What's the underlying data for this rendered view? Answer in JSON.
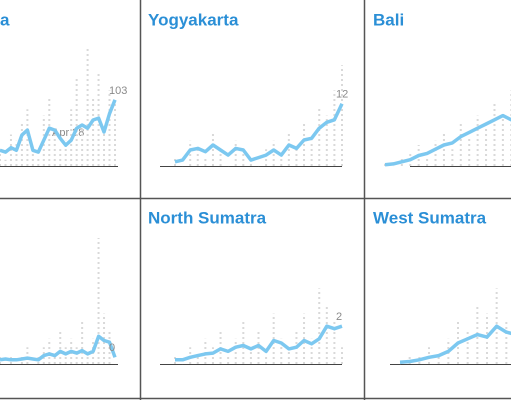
{
  "chart_data": [
    {
      "type": "line",
      "title": "a",
      "ylim": [
        0,
        200
      ],
      "label_last": true,
      "annotation": "Apr 28",
      "series": [
        {
          "color": "#d9d9d9",
          "style": "dotted",
          "values": [
            30,
            10,
            50,
            40,
            70,
            90,
            20,
            15,
            80,
            110,
            60,
            30,
            40,
            90,
            140,
            70,
            190,
            110,
            150,
            60,
            120,
            103
          ]
        },
        {
          "color": "#7cc8f0",
          "style": "solid",
          "values": [
            25,
            22,
            29,
            25,
            49,
            57,
            25,
            22,
            41,
            60,
            57,
            44,
            33,
            41,
            60,
            65,
            60,
            73,
            76,
            54,
            83,
            105
          ]
        }
      ]
    },
    {
      "type": "line",
      "title": "Yogyakarta",
      "ylim": [
        0,
        15
      ],
      "label_last": true,
      "series": [
        {
          "color": "#d9d9d9",
          "style": "dotted",
          "values": [
            1,
            0,
            3,
            2,
            1,
            4,
            2,
            0,
            3,
            2,
            1,
            0,
            2,
            3,
            1,
            4,
            2,
            5,
            3,
            7,
            6,
            9,
            12
          ]
        },
        {
          "color": "#7cc8f0",
          "style": "solid",
          "values": [
            0.5,
            0.7,
            1.9,
            2.1,
            1.7,
            2.5,
            1.9,
            1.3,
            2.1,
            1.9,
            0.7,
            1,
            1.3,
            1.9,
            1.3,
            2.5,
            2.1,
            3.1,
            3.3,
            4.5,
            5.2,
            5.5,
            7.4
          ]
        }
      ]
    },
    {
      "type": "line",
      "title": "Bali",
      "ylim": [
        0,
        30
      ],
      "label_last": false,
      "series": [
        {
          "color": "#d9d9d9",
          "style": "dotted",
          "values": [
            1,
            0,
            2,
            3,
            5,
            2,
            6,
            8,
            4,
            10,
            7,
            12,
            9,
            15,
            13,
            18,
            10,
            16,
            20,
            14
          ]
        },
        {
          "color": "#7cc8f0",
          "style": "solid",
          "values": [
            0.3,
            0.5,
            1,
            1.5,
            2.5,
            3,
            4,
            5,
            5.5,
            7,
            8,
            9,
            10,
            11,
            12,
            11,
            12,
            13,
            14,
            15
          ]
        }
      ]
    },
    {
      "type": "line",
      "ylim": [
        0,
        15
      ],
      "label_last": true,
      "series": [
        {
          "color": "#d9d9d9",
          "style": "dotted",
          "values": [
            1,
            0,
            1,
            0,
            1,
            2,
            0,
            1,
            2,
            3,
            1,
            4,
            2,
            3,
            2,
            5,
            1,
            3,
            15,
            6,
            4,
            0
          ]
        },
        {
          "color": "#7cc8f0",
          "style": "solid",
          "values": [
            0.5,
            0.6,
            0.5,
            0.5,
            0.6,
            0.7,
            0.6,
            0.5,
            1,
            1.2,
            1,
            1.5,
            1.2,
            1.5,
            1.3,
            1.6,
            1.2,
            1.5,
            3.3,
            2.8,
            2.6,
            0.8
          ]
        }
      ]
    },
    {
      "type": "line",
      "title": "North Sumatra",
      "ylim": [
        0,
        15
      ],
      "label_last": true,
      "series": [
        {
          "color": "#d9d9d9",
          "style": "dotted",
          "values": [
            1,
            0,
            2,
            1,
            3,
            2,
            4,
            1,
            3,
            5,
            2,
            4,
            1,
            6,
            3,
            2,
            4,
            6,
            3,
            9,
            7,
            5,
            2
          ]
        },
        {
          "color": "#7cc8f0",
          "style": "solid",
          "values": [
            0.5,
            0.5,
            0.8,
            1,
            1.2,
            1.3,
            1.8,
            1.5,
            2,
            2.2,
            1.8,
            2.2,
            1.5,
            2.8,
            2.5,
            1.8,
            2,
            2.8,
            2.4,
            3,
            4.5,
            4.2,
            4.5
          ]
        }
      ]
    },
    {
      "type": "line",
      "title": "West Sumatra",
      "ylim": [
        0,
        15
      ],
      "label_last": false,
      "series": [
        {
          "color": "#d9d9d9",
          "style": "dotted",
          "values": [
            0,
            1,
            1,
            2,
            1,
            3,
            5,
            4,
            7,
            6,
            9,
            5,
            7,
            8,
            5,
            6
          ]
        },
        {
          "color": "#7cc8f0",
          "style": "solid",
          "values": [
            0.2,
            0.3,
            0.5,
            0.8,
            1,
            1.5,
            2.5,
            3,
            3.5,
            3.2,
            4.5,
            3.8,
            3.5,
            4,
            3.2,
            3.8
          ]
        }
      ]
    }
  ]
}
